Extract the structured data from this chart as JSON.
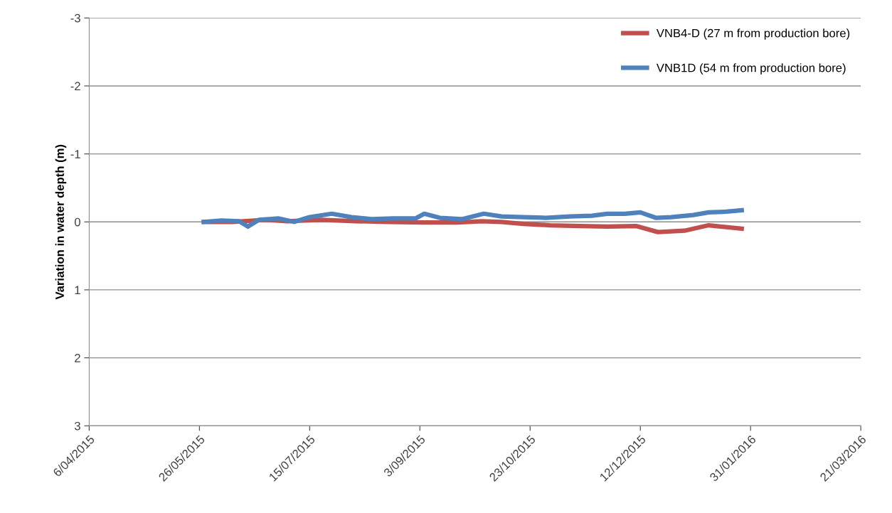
{
  "chart_data": {
    "type": "line",
    "ylabel": "Variation in water depth (m)",
    "ylim": [
      3,
      -3
    ],
    "yticks": [
      -3,
      -2,
      -1,
      0,
      1,
      2,
      3
    ],
    "xlim": [
      "2015-04-06",
      "2016-03-21"
    ],
    "xticks": [
      {
        "value": "2015-04-06",
        "label": "6/04/2015"
      },
      {
        "value": "2015-05-26",
        "label": "26/05/2015"
      },
      {
        "value": "2015-07-15",
        "label": "15/07/2015"
      },
      {
        "value": "2015-09-03",
        "label": "3/09/2015"
      },
      {
        "value": "2015-10-23",
        "label": "23/10/2015"
      },
      {
        "value": "2015-12-12",
        "label": "12/12/2015"
      },
      {
        "value": "2016-01-31",
        "label": "31/01/2016"
      },
      {
        "value": "2016-03-21",
        "label": "21/03/2016"
      }
    ],
    "grid": "y",
    "legend": "top right",
    "line_style": "solid",
    "marker": "none",
    "series": [
      {
        "name": "VNB4-D (27 m from production bore)",
        "color": "#c0504d",
        "x": [
          "2015-05-28",
          "2015-06-10",
          "2015-06-25",
          "2015-07-05",
          "2015-07-20",
          "2015-08-05",
          "2015-08-20",
          "2015-09-05",
          "2015-09-20",
          "2015-10-01",
          "2015-10-10",
          "2015-10-20",
          "2015-11-01",
          "2015-11-15",
          "2015-11-27",
          "2015-12-10",
          "2015-12-20",
          "2016-01-01",
          "2016-01-12",
          "2016-01-27"
        ],
        "values": [
          0,
          0,
          -0.03,
          -0.01,
          -0.03,
          -0.01,
          0,
          0.01,
          0.01,
          -0.01,
          0,
          0.03,
          0.05,
          0.06,
          0.07,
          0.06,
          0.15,
          0.13,
          0.05,
          0.1
        ]
      },
      {
        "name": "VNB1D (54 m from production bore)",
        "color": "#4f81bd",
        "x": [
          "2015-05-28",
          "2015-06-05",
          "2015-06-13",
          "2015-06-17",
          "2015-06-22",
          "2015-07-01",
          "2015-07-08",
          "2015-07-15",
          "2015-07-25",
          "2015-08-03",
          "2015-08-12",
          "2015-08-22",
          "2015-09-01",
          "2015-09-05",
          "2015-09-12",
          "2015-09-22",
          "2015-10-02",
          "2015-10-10",
          "2015-10-20",
          "2015-10-30",
          "2015-11-10",
          "2015-11-20",
          "2015-11-27",
          "2015-12-05",
          "2015-12-12",
          "2015-12-19",
          "2015-12-26",
          "2016-01-05",
          "2016-01-12",
          "2016-01-20",
          "2016-01-27"
        ],
        "values": [
          0,
          -0.02,
          -0.01,
          0.07,
          -0.03,
          -0.05,
          0,
          -0.07,
          -0.12,
          -0.07,
          -0.04,
          -0.05,
          -0.05,
          -0.12,
          -0.06,
          -0.04,
          -0.12,
          -0.08,
          -0.07,
          -0.06,
          -0.08,
          -0.09,
          -0.12,
          -0.12,
          -0.14,
          -0.06,
          -0.07,
          -0.1,
          -0.14,
          -0.15,
          -0.17
        ]
      }
    ]
  }
}
